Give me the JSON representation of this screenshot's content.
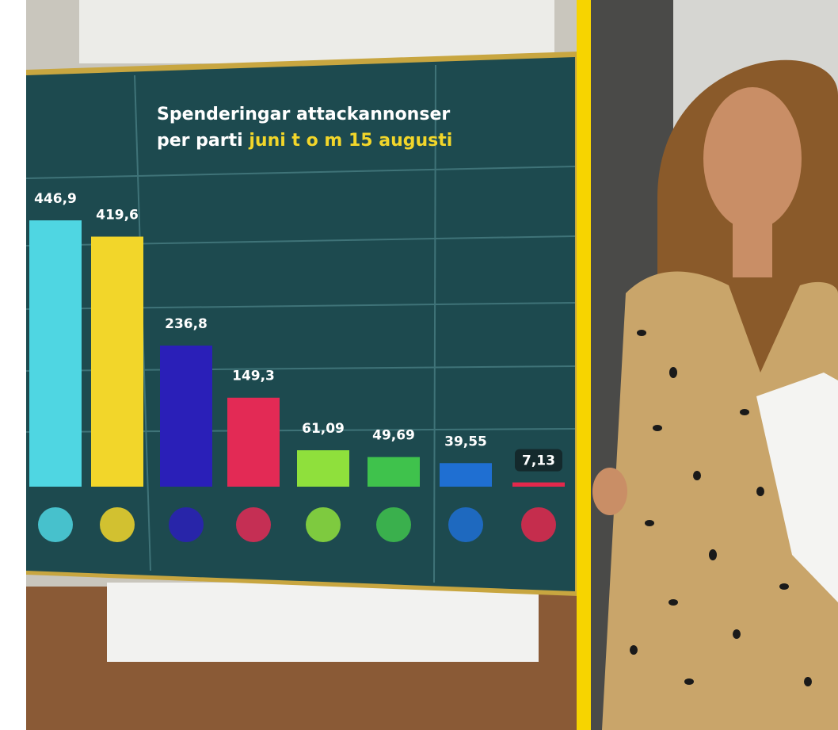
{
  "chart_data": {
    "type": "bar",
    "title": "Spenderingar attackannonser",
    "subtitle": "per parti",
    "subtitle_highlight": "juni t o m 15 augusti",
    "categories": [
      null,
      null,
      null,
      null,
      null,
      null,
      null,
      null
    ],
    "values": [
      446.9,
      419.6,
      236.8,
      149.3,
      61.09,
      49.69,
      39.55,
      7.13
    ],
    "value_labels": [
      "446,9",
      "419,6",
      "236,8",
      "149,3",
      "61,09",
      "49,69",
      "39,55",
      "7,13"
    ],
    "colors": [
      "#4fd6e2",
      "#f2d62a",
      "#2a1fb8",
      "#e32a55",
      "#8fe03c",
      "#3fc24c",
      "#1f6fd2",
      "#e3284c"
    ]
  }
}
